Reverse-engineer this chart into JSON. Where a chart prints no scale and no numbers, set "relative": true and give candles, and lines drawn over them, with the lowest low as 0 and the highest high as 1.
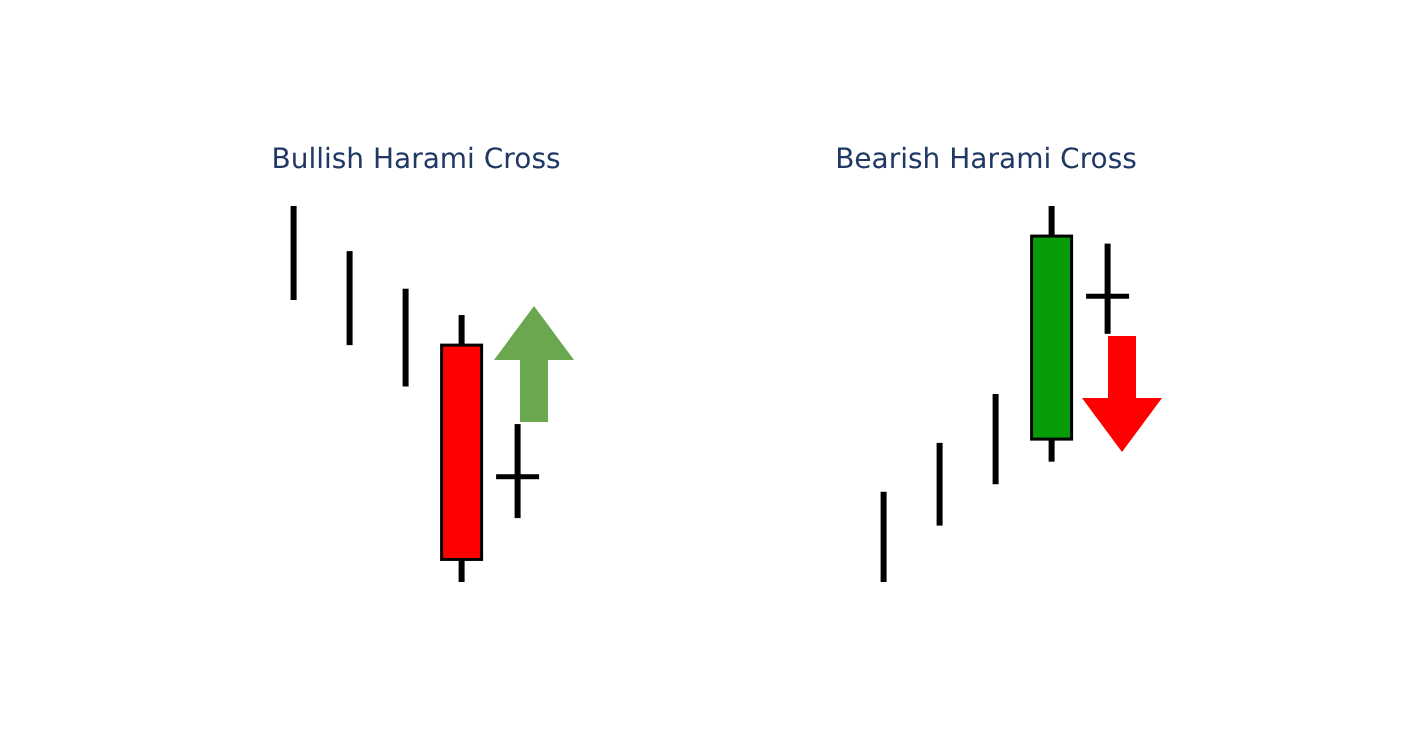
{
  "chart_data": [
    {
      "type": "candlestick",
      "title": "Bullish Harami Cross",
      "relative": true,
      "categories": [
        null,
        null,
        null,
        null,
        null
      ],
      "ohlc": [
        [
          1,
          1,
          0.75,
          0.75
        ],
        [
          0.88,
          0.88,
          0.63,
          0.63
        ],
        [
          0.78,
          0.78,
          0.52,
          0.52
        ],
        [
          0.63,
          0.71,
          0,
          0.06
        ],
        [
          0.28,
          0.42,
          0.17,
          0.28
        ]
      ],
      "colors": [
        null,
        null,
        null,
        "#ff0000",
        "#000000"
      ]
    },
    {
      "type": "candlestick",
      "title": "Bearish Harami Cross",
      "relative": true,
      "categories": [
        null,
        null,
        null,
        null,
        null
      ],
      "ohlc": [
        [
          0,
          0.24,
          0,
          0.24
        ],
        [
          0.15,
          0.37,
          0.15,
          0.37
        ],
        [
          0.26,
          0.5,
          0.26,
          0.5
        ],
        [
          0.38,
          1,
          0.32,
          0.92
        ],
        [
          0.76,
          0.9,
          0.66,
          0.76
        ]
      ],
      "colors": [
        null,
        null,
        null,
        "#089c08",
        "#000000"
      ]
    }
  ]
}
